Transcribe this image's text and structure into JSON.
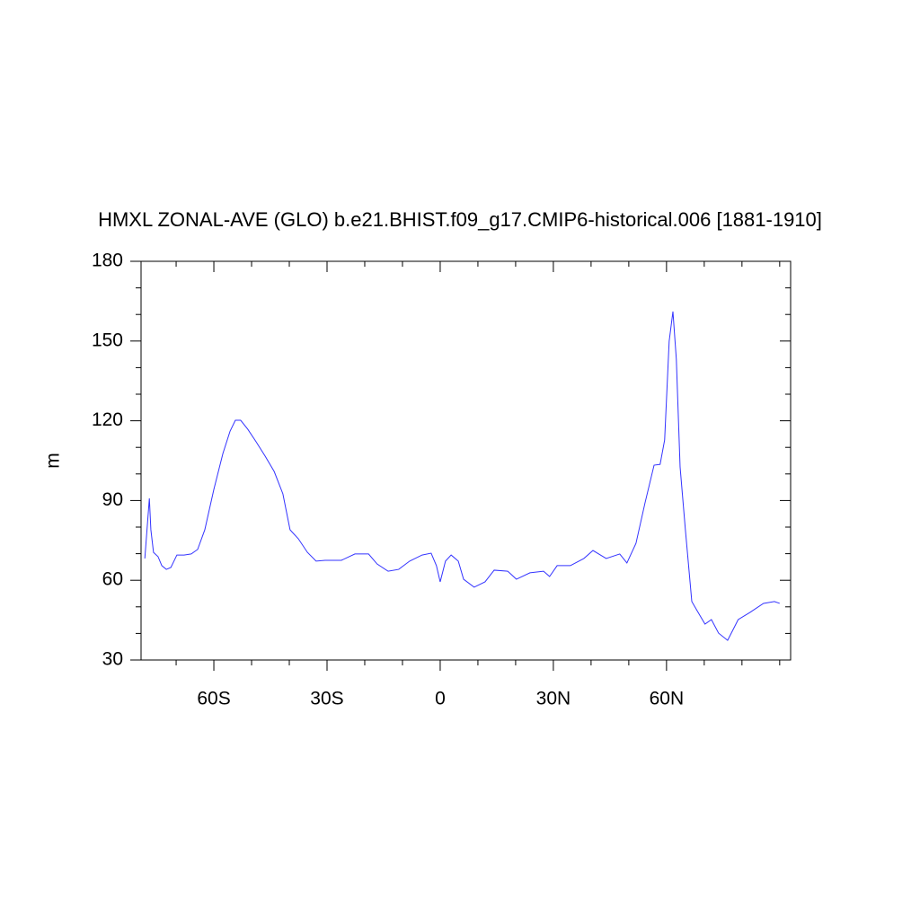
{
  "chart_data": {
    "type": "line",
    "title": "HMXL ZONAL-AVE (GLO) b.e21.BHIST.f09_g17.CMIP6-historical.006 [1881-1910]",
    "y_label": "m",
    "x": [
      -78.3,
      -77.1,
      -76.7,
      -76,
      -74.8,
      -73.8,
      -72.6,
      -71.4,
      -69.8,
      -67.9,
      -66,
      -64.3,
      -62.4,
      -60,
      -57.6,
      -55.7,
      -54.3,
      -52.9,
      -51,
      -48.8,
      -46.4,
      -44,
      -41.7,
      -39.8,
      -37.6,
      -35.2,
      -32.9,
      -30.5,
      -26.2,
      -22.6,
      -19,
      -16.7,
      -13.8,
      -11,
      -8.1,
      -4.8,
      -2.4,
      -1,
      0,
      1.4,
      2.9,
      4.8,
      6.2,
      9,
      11.9,
      14.3,
      17.9,
      20.2,
      23.8,
      27.4,
      29,
      31,
      34.5,
      38.1,
      40.5,
      44,
      47.6,
      49.5,
      51.9,
      54.3,
      56.7,
      58.3,
      59.5,
      60.7,
      61.7,
      62.6,
      63.6,
      65,
      66.7,
      68.1,
      70.2,
      71.9,
      73.8,
      76.2,
      79,
      82.1,
      85.7,
      88.6,
      90
    ],
    "series": [
      {
        "name": "HMXL",
        "color": "#3333ff",
        "values": [
          68.2,
          90.8,
          79,
          70.5,
          68.9,
          65.5,
          64.1,
          64.8,
          69.5,
          69.5,
          69.9,
          71.6,
          79,
          94.2,
          107.7,
          116.1,
          120.2,
          120.2,
          116.8,
          112.1,
          106.7,
          100.9,
          92.5,
          79,
          75.6,
          70.5,
          67.2,
          67.5,
          67.5,
          69.9,
          69.9,
          66.1,
          63.4,
          64.1,
          67.2,
          69.5,
          70.2,
          65.5,
          59.4,
          67.2,
          69.5,
          67.2,
          60.4,
          57.4,
          59.4,
          63.8,
          63.4,
          60.4,
          62.8,
          63.4,
          61.4,
          65.5,
          65.5,
          68.2,
          71.2,
          68.2,
          69.9,
          66.5,
          73.9,
          89.1,
          103.3,
          103.6,
          112.8,
          149.9,
          161.1,
          143.2,
          102.6,
          79,
          52,
          48.6,
          43.5,
          45.2,
          40.1,
          37.4,
          45.2,
          47.9,
          51.3,
          52,
          51.3
        ]
      }
    ],
    "xlim": [
      -79.3,
      92.9
    ],
    "xticks": [
      {
        "value": -60,
        "label": "60S"
      },
      {
        "value": -30,
        "label": "30S"
      },
      0,
      {
        "value": 30,
        "label": "30N"
      },
      {
        "value": 60,
        "label": "60N"
      }
    ],
    "xminorticks": [
      -70,
      -50,
      -40,
      -20,
      -10,
      10,
      20,
      40,
      50,
      70,
      80,
      90
    ],
    "ylim": [
      30,
      180
    ],
    "yticks": [
      30,
      60,
      90,
      120,
      150,
      180
    ],
    "yminorticks": [
      40,
      50,
      70,
      80,
      100,
      110,
      130,
      140,
      160,
      170
    ],
    "grid": false
  }
}
